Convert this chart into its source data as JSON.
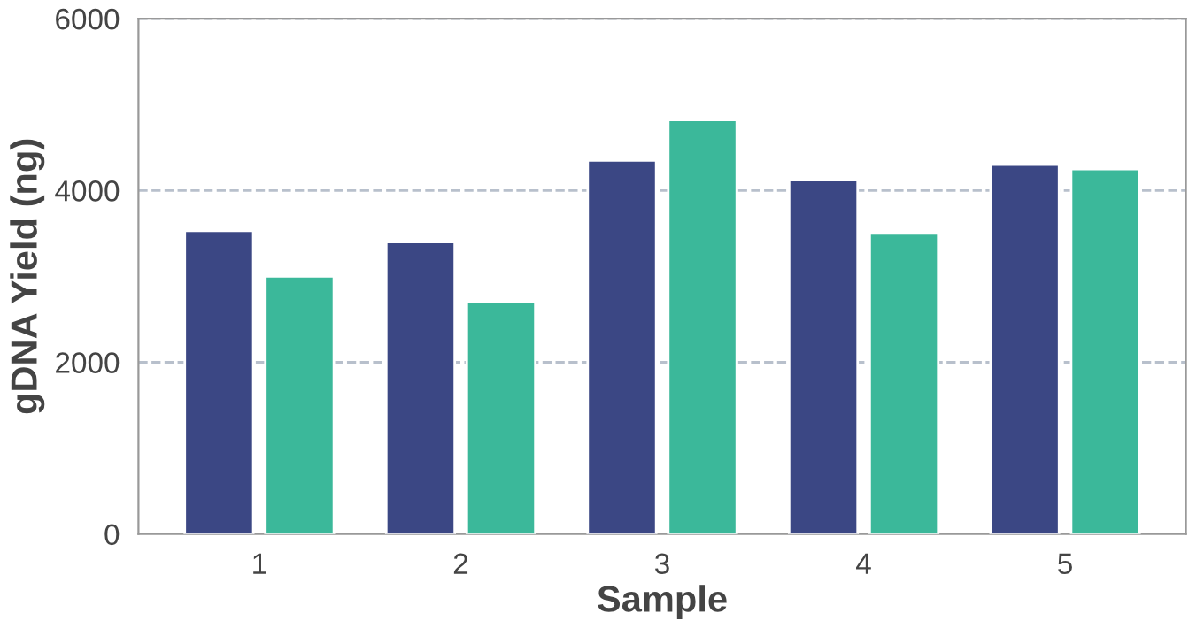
{
  "chart_data": {
    "type": "bar",
    "xlabel": "Sample",
    "ylabel": "gDNA Yield (ng)",
    "categories": [
      "1",
      "2",
      "3",
      "4",
      "5"
    ],
    "series": [
      {
        "color": "#3b4784",
        "values": [
          3530,
          3400,
          4350,
          4120,
          4300
        ]
      },
      {
        "color": "#3bb89a",
        "values": [
          3000,
          2700,
          4820,
          3500,
          4250
        ]
      }
    ],
    "ylim": [
      0,
      6000
    ],
    "yticks": [
      0,
      2000,
      4000,
      6000
    ],
    "grid": "y"
  }
}
